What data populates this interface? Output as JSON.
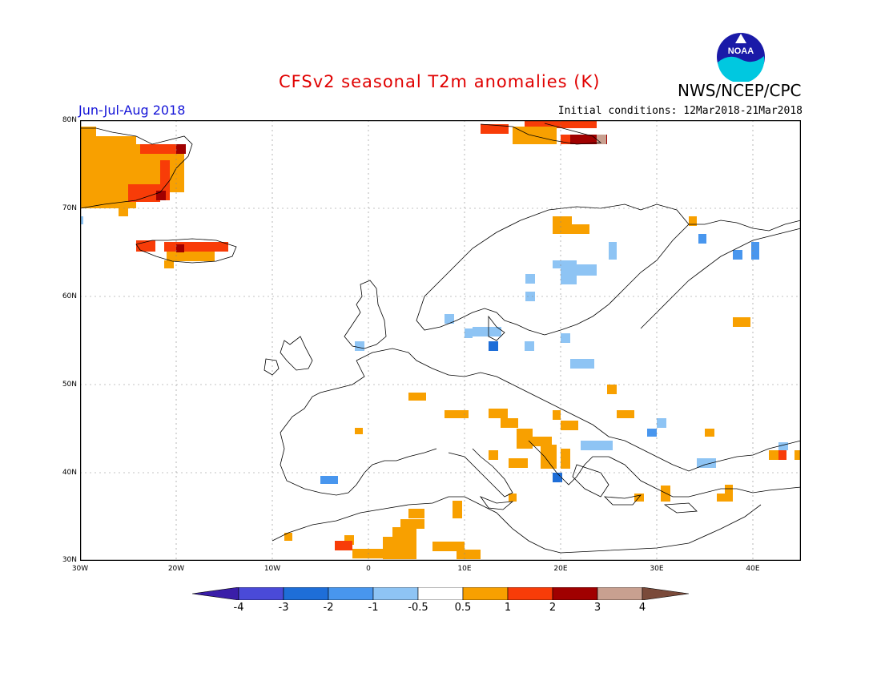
{
  "header": {
    "title": "CFSv2 seasonal T2m anomalies (K)",
    "org": "NWS/NCEP/CPC",
    "period": "Jun-Jul-Aug 2018",
    "initial_conditions": "Initial conditions: 12Mar2018-21Mar2018",
    "logo_text": "NOAA"
  },
  "map": {
    "lat_labels": [
      "80N",
      "70N",
      "60N",
      "50N",
      "40N",
      "30N"
    ],
    "lon_labels": [
      "30W",
      "20W",
      "10W",
      "0",
      "10E",
      "20E",
      "30E",
      "40E"
    ],
    "lat_range": [
      30,
      80
    ],
    "lon_range": [
      -30,
      45
    ]
  },
  "colorbar": {
    "labels": [
      "-4",
      "-3",
      "-2",
      "-1",
      "-0.5",
      "0.5",
      "1",
      "2",
      "3",
      "4"
    ],
    "colors": [
      "#3a1ea8",
      "#4a4ad8",
      "#1e6ed8",
      "#4896ee",
      "#8ec4f4",
      "#ffffff",
      "#f8a000",
      "#f83c08",
      "#a00000",
      "#c8a090",
      "#7a4a3a"
    ]
  }
}
